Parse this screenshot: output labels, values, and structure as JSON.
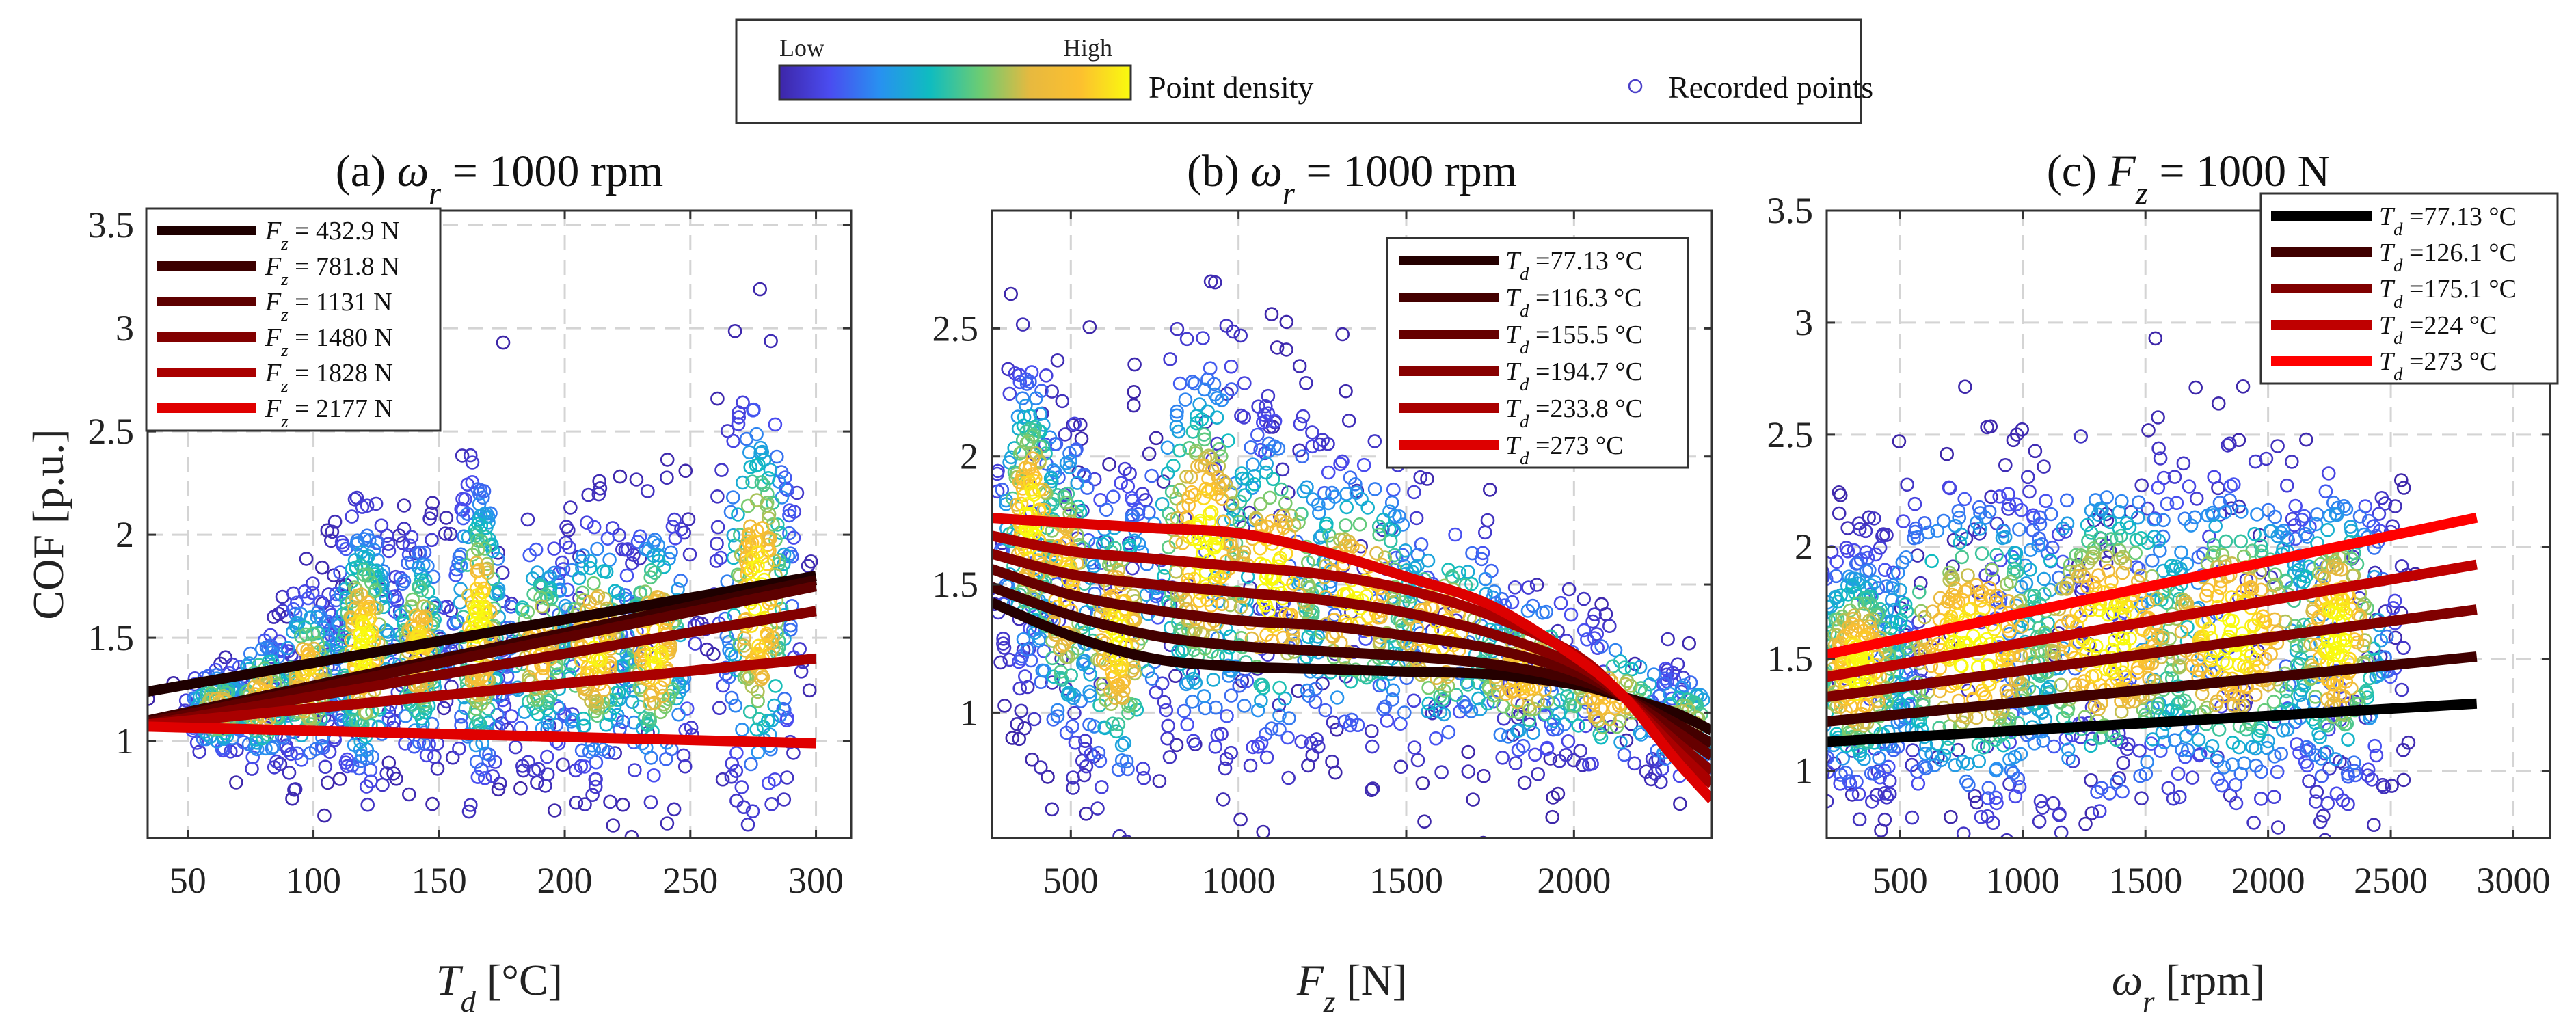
{
  "top_legend": {
    "low_label": "Low",
    "high_label": "High",
    "density_label": "Point density",
    "points_label": "Recorded points",
    "colormap": [
      "#3d26a8",
      "#4a4cf0",
      "#2891f0",
      "#0fbcc0",
      "#6ccc73",
      "#e7b93f",
      "#fcc02f",
      "#f9fb0e"
    ],
    "marker_color": "#4a3fc8"
  },
  "chart_data": [
    {
      "type": "scatter",
      "title": {
        "prefix": "(a)",
        "var": "ω",
        "sub": "r",
        "rest": " = 1000 rpm"
      },
      "xlabel": {
        "var": "T",
        "sub": "d",
        "rest": " [°C]"
      },
      "ylabel": "COF [p.u.]",
      "xlim": [
        34,
        314
      ],
      "ylim": [
        0.53,
        3.57
      ],
      "xticks": [
        50,
        100,
        150,
        200,
        250,
        300
      ],
      "yticks": [
        1,
        1.5,
        2,
        2.5,
        3,
        3.5
      ],
      "grid": true,
      "legend_placement": "top-left",
      "scatter_clusters": [
        {
          "x": 62,
          "y": 1.15,
          "sx": 6,
          "sy": 0.1,
          "n": 120
        },
        {
          "x": 80,
          "y": 1.2,
          "sx": 6,
          "sy": 0.15,
          "n": 150
        },
        {
          "x": 98,
          "y": 1.3,
          "sx": 6,
          "sy": 0.2,
          "n": 180
        },
        {
          "x": 120,
          "y": 1.45,
          "sx": 6,
          "sy": 0.3,
          "n": 260
        },
        {
          "x": 142,
          "y": 1.45,
          "sx": 5,
          "sy": 0.25,
          "n": 180
        },
        {
          "x": 166,
          "y": 1.55,
          "sx": 5,
          "sy": 0.35,
          "n": 220
        },
        {
          "x": 190,
          "y": 1.45,
          "sx": 7,
          "sy": 0.25,
          "n": 150
        },
        {
          "x": 212,
          "y": 1.45,
          "sx": 8,
          "sy": 0.28,
          "n": 200
        },
        {
          "x": 236,
          "y": 1.45,
          "sx": 7,
          "sy": 0.3,
          "n": 200
        },
        {
          "x": 277,
          "y": 1.7,
          "sx": 7,
          "sy": 0.45,
          "n": 260
        }
      ],
      "series": [
        {
          "name": "F_z = 432.9 N",
          "label": {
            "var": "F",
            "sub": "z",
            "value": " = 432.9",
            "unit": " N"
          },
          "color": "#1e0000",
          "x": [
            34,
            300
          ],
          "y": [
            1.24,
            1.8
          ]
        },
        {
          "name": "F_z = 781.8 N",
          "label": {
            "var": "F",
            "sub": "z",
            "value": " = 781.8",
            "unit": " N"
          },
          "color": "#3c0000",
          "x": [
            34,
            300
          ],
          "y": [
            1.1,
            1.78
          ]
        },
        {
          "name": "F_z = 1131 N",
          "label": {
            "var": "F",
            "sub": "z",
            "value": " = 1131",
            "unit": " N"
          },
          "color": "#5e0000",
          "x": [
            34,
            300
          ],
          "y": [
            1.09,
            1.75
          ]
        },
        {
          "name": "F_z = 1480 N",
          "label": {
            "var": "F",
            "sub": "z",
            "value": " = 1480",
            "unit": " N"
          },
          "color": "#820000",
          "x": [
            34,
            300
          ],
          "y": [
            1.08,
            1.63
          ]
        },
        {
          "name": "F_z = 1828 N",
          "label": {
            "var": "F",
            "sub": "z",
            "value": " = 1828",
            "unit": " N"
          },
          "color": "#aa0000",
          "x": [
            34,
            300
          ],
          "y": [
            1.08,
            1.4
          ]
        },
        {
          "name": "F_z = 2177 N",
          "label": {
            "var": "F",
            "sub": "z",
            "value": " = 2177",
            "unit": " N"
          },
          "color": "#e00000",
          "x": [
            34,
            300
          ],
          "y": [
            1.07,
            0.99
          ]
        }
      ]
    },
    {
      "type": "scatter",
      "title": {
        "prefix": "(b)",
        "var": "ω",
        "sub": "r",
        "rest": " = 1000 rpm"
      },
      "xlabel": {
        "var": "F",
        "sub": "z",
        "rest": " [N]"
      },
      "ylabel": "",
      "xlim": [
        265,
        2411
      ],
      "ylim": [
        0.51,
        2.96
      ],
      "xticks": [
        500,
        1000,
        1500,
        2000
      ],
      "yticks": [
        1,
        1.5,
        2,
        2.5
      ],
      "grid": true,
      "legend_placement": "top-right",
      "scatter_clusters": [
        {
          "x": 380,
          "y": 1.75,
          "sx": 45,
          "sy": 0.28,
          "n": 220
        },
        {
          "x": 480,
          "y": 1.5,
          "sx": 50,
          "sy": 0.3,
          "n": 180
        },
        {
          "x": 640,
          "y": 1.3,
          "sx": 60,
          "sy": 0.28,
          "n": 200
        },
        {
          "x": 900,
          "y": 1.65,
          "sx": 90,
          "sy": 0.35,
          "n": 260
        },
        {
          "x": 1100,
          "y": 1.5,
          "sx": 100,
          "sy": 0.3,
          "n": 220
        },
        {
          "x": 1350,
          "y": 1.45,
          "sx": 110,
          "sy": 0.25,
          "n": 200
        },
        {
          "x": 1600,
          "y": 1.3,
          "sx": 110,
          "sy": 0.2,
          "n": 180
        },
        {
          "x": 1850,
          "y": 1.15,
          "sx": 110,
          "sy": 0.15,
          "n": 160
        },
        {
          "x": 2100,
          "y": 1.05,
          "sx": 100,
          "sy": 0.12,
          "n": 130
        },
        {
          "x": 2330,
          "y": 0.95,
          "sx": 60,
          "sy": 0.1,
          "n": 90
        }
      ],
      "series": [
        {
          "name": "T_d = 77.13 °C",
          "label": {
            "var": "T",
            "sub": "d",
            "value": " =77.13",
            "unit": " °C"
          },
          "color": "#240000",
          "x": [
            265,
            500,
            750,
            1000,
            1250,
            1500,
            1750,
            2000,
            2150,
            2300,
            2411
          ],
          "y": [
            1.43,
            1.3,
            1.21,
            1.18,
            1.17,
            1.16,
            1.15,
            1.11,
            1.06,
            1.0,
            0.93
          ]
        },
        {
          "name": "T_d = 116.3 °C",
          "label": {
            "var": "T",
            "sub": "d",
            "value": " =116.3",
            "unit": " °C"
          },
          "color": "#440000",
          "x": [
            265,
            500,
            750,
            1000,
            1250,
            1500,
            1750,
            2000,
            2150,
            2300,
            2411
          ],
          "y": [
            1.49,
            1.38,
            1.3,
            1.26,
            1.24,
            1.22,
            1.19,
            1.13,
            1.06,
            0.96,
            0.88
          ]
        },
        {
          "name": "T_d = 155.5 °C",
          "label": {
            "var": "T",
            "sub": "d",
            "value": " =155.5",
            "unit": " °C"
          },
          "color": "#660000",
          "x": [
            265,
            500,
            750,
            1000,
            1250,
            1500,
            1750,
            2000,
            2150,
            2300,
            2411
          ],
          "y": [
            1.56,
            1.46,
            1.4,
            1.36,
            1.34,
            1.3,
            1.25,
            1.16,
            1.06,
            0.93,
            0.83
          ]
        },
        {
          "name": "T_d = 194.7 °C",
          "label": {
            "var": "T",
            "sub": "d",
            "value": " =194.7",
            "unit": " °C"
          },
          "color": "#880000",
          "x": [
            265,
            500,
            750,
            1000,
            1250,
            1500,
            1750,
            2000,
            2150,
            2300,
            2411
          ],
          "y": [
            1.62,
            1.54,
            1.5,
            1.47,
            1.44,
            1.39,
            1.31,
            1.19,
            1.06,
            0.89,
            0.77
          ]
        },
        {
          "name": "T_d = 233.8 °C",
          "label": {
            "var": "T",
            "sub": "d",
            "value": " =233.8",
            "unit": " °C"
          },
          "color": "#aa0000",
          "x": [
            265,
            500,
            750,
            1000,
            1250,
            1500,
            1750,
            2000,
            2150,
            2300,
            2411
          ],
          "y": [
            1.69,
            1.63,
            1.6,
            1.57,
            1.54,
            1.48,
            1.38,
            1.23,
            1.06,
            0.86,
            0.72
          ]
        },
        {
          "name": "T_d = 273 °C",
          "label": {
            "var": "T",
            "sub": "d",
            "value": " =273",
            "unit": " °C"
          },
          "color": "#dd0000",
          "x": [
            265,
            500,
            750,
            1000,
            1250,
            1500,
            1750,
            2000,
            2150,
            2300,
            2411
          ],
          "y": [
            1.76,
            1.74,
            1.72,
            1.7,
            1.63,
            1.53,
            1.42,
            1.22,
            1.06,
            0.82,
            0.66
          ]
        }
      ]
    },
    {
      "type": "scatter",
      "title": {
        "prefix": "(c)",
        "var": "F",
        "sub": "z",
        "rest": " = 1000 N"
      },
      "xlabel": {
        "var": "ω",
        "sub": "r",
        "rest": " [rpm]"
      },
      "ylabel": "",
      "xlim": [
        201,
        3149
      ],
      "ylim": [
        0.7,
        3.5
      ],
      "xticks": [
        500,
        1000,
        1500,
        2000,
        2500,
        3000
      ],
      "yticks": [
        1,
        1.5,
        2,
        2.5,
        3,
        3.5
      ],
      "grid": true,
      "legend_placement": "top-right",
      "scatter_clusters": [
        {
          "x": 330,
          "y": 1.45,
          "sx": 110,
          "sy": 0.25,
          "n": 380
        },
        {
          "x": 800,
          "y": 1.55,
          "sx": 220,
          "sy": 0.33,
          "n": 420
        },
        {
          "x": 1350,
          "y": 1.6,
          "sx": 230,
          "sy": 0.35,
          "n": 420
        },
        {
          "x": 1850,
          "y": 1.6,
          "sx": 220,
          "sy": 0.33,
          "n": 400
        },
        {
          "x": 2280,
          "y": 1.6,
          "sx": 110,
          "sy": 0.33,
          "n": 280
        }
      ],
      "series": [
        {
          "name": "T_d = 77.13 °C",
          "label": {
            "var": "T",
            "sub": "d",
            "value": " =77.13",
            "unit": " °C"
          },
          "color": "#000000",
          "x": [
            201,
            2850
          ],
          "y": [
            1.13,
            1.3
          ]
        },
        {
          "name": "T_d = 126.1 °C",
          "label": {
            "var": "T",
            "sub": "d",
            "value": " =126.1",
            "unit": " °C"
          },
          "color": "#400000",
          "x": [
            201,
            2850
          ],
          "y": [
            1.22,
            1.51
          ]
        },
        {
          "name": "T_d = 175.1 °C",
          "label": {
            "var": "T",
            "sub": "d",
            "value": " =175.1",
            "unit": " °C"
          },
          "color": "#800000",
          "x": [
            201,
            2850
          ],
          "y": [
            1.33,
            1.72
          ]
        },
        {
          "name": "T_d = 224 °C",
          "label": {
            "var": "T",
            "sub": "d",
            "value": " =224",
            "unit": " °C"
          },
          "color": "#bf0000",
          "x": [
            201,
            2850
          ],
          "y": [
            1.42,
            1.92
          ]
        },
        {
          "name": "T_d = 273 °C",
          "label": {
            "var": "T",
            "sub": "d",
            "value": " =273",
            "unit": " °C"
          },
          "color": "#ff0000",
          "x": [
            201,
            2850
          ],
          "y": [
            1.52,
            2.13
          ]
        }
      ]
    }
  ]
}
